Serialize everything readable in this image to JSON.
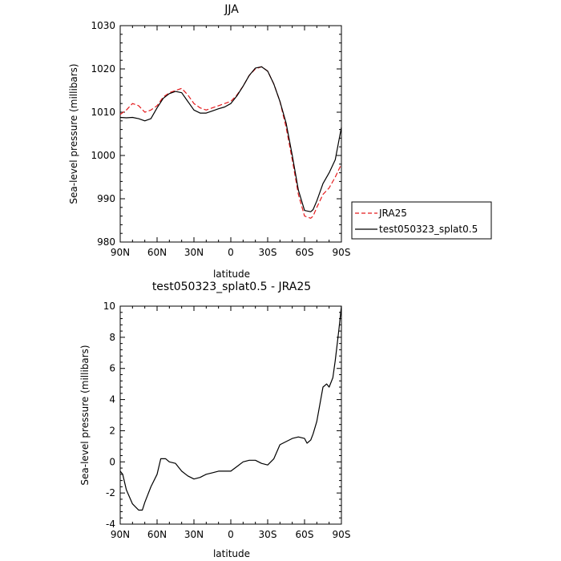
{
  "chart_data": [
    {
      "type": "line",
      "title": "JJA",
      "xlabel": "latitude",
      "ylabel": "Sea-level pressure (millibars)",
      "xlim": [
        90,
        -90
      ],
      "ylim": [
        980,
        1030
      ],
      "xticks": [
        90,
        60,
        30,
        0,
        -30,
        -60,
        -90
      ],
      "xtick_labels": [
        "90N",
        "60N",
        "30N",
        "0",
        "30S",
        "60S",
        "90S"
      ],
      "yticks": [
        980,
        990,
        1000,
        1010,
        1020,
        1030
      ],
      "ytick_labels": [
        "980",
        "990",
        "1000",
        "1010",
        "1020",
        "1030"
      ],
      "grid": false,
      "legend_position": "right",
      "series": [
        {
          "name": "JRA25",
          "color": "#e41a1c",
          "style": "dashed",
          "x": [
            90,
            85,
            80,
            75,
            70,
            65,
            60,
            55,
            50,
            45,
            40,
            35,
            30,
            25,
            20,
            15,
            10,
            5,
            0,
            -5,
            -10,
            -15,
            -20,
            -25,
            -30,
            -35,
            -40,
            -45,
            -50,
            -55,
            -60,
            -65,
            -67,
            -70,
            -75,
            -80,
            -85,
            -90
          ],
          "y": [
            1009.5,
            1010.5,
            1012,
            1011.5,
            1010,
            1010.5,
            1011.5,
            1013.5,
            1014.5,
            1015,
            1015.5,
            1014,
            1012,
            1011,
            1010.5,
            1011,
            1011.5,
            1012,
            1012.5,
            1014,
            1016,
            1018.5,
            1020,
            1020.5,
            1019.5,
            1016.5,
            1012.5,
            1006.5,
            999,
            991,
            986,
            985.5,
            986,
            988,
            991,
            992.5,
            995,
            998
          ]
        },
        {
          "name": "test050323_splat0.5",
          "color": "#000000",
          "style": "solid",
          "x": [
            90,
            85,
            80,
            75,
            70,
            65,
            60,
            55,
            50,
            45,
            40,
            35,
            30,
            25,
            20,
            15,
            10,
            5,
            0,
            -5,
            -10,
            -15,
            -20,
            -25,
            -30,
            -35,
            -40,
            -45,
            -50,
            -55,
            -60,
            -65,
            -67,
            -70,
            -75,
            -80,
            -85,
            -90
          ],
          "y": [
            1008.8,
            1008.7,
            1008.8,
            1008.5,
            1008,
            1008.5,
            1011,
            1013.2,
            1014.3,
            1014.8,
            1014.5,
            1012.5,
            1010.5,
            1009.8,
            1009.8,
            1010.3,
            1010.8,
            1011.2,
            1012,
            1013.8,
            1016,
            1018.5,
            1020.2,
            1020.5,
            1019.5,
            1016.5,
            1012.5,
            1007.5,
            1000,
            992,
            987.3,
            987,
            987.5,
            989.5,
            993.5,
            996,
            999,
            1006.5
          ]
        }
      ]
    },
    {
      "type": "line",
      "title": "test050323_splat0.5 - JRA25",
      "xlabel": "latitude",
      "ylabel": "Sea-level pressure (millibars)",
      "xlim": [
        90,
        -90
      ],
      "ylim": [
        -4,
        10
      ],
      "xticks": [
        90,
        60,
        30,
        0,
        -30,
        -60,
        -90
      ],
      "xtick_labels": [
        "90N",
        "60N",
        "30N",
        "0",
        "30S",
        "60S",
        "90S"
      ],
      "yticks": [
        -4,
        -2,
        0,
        2,
        4,
        6,
        8,
        10
      ],
      "ytick_labels": [
        "-4",
        "-2",
        "0",
        "2",
        "4",
        "6",
        "8",
        "10"
      ],
      "grid": false,
      "series": [
        {
          "color": "#000000",
          "style": "solid",
          "x": [
            90,
            88,
            85,
            80,
            75,
            72,
            70,
            65,
            60,
            57,
            53,
            50,
            45,
            40,
            35,
            30,
            25,
            20,
            15,
            10,
            5,
            0,
            -5,
            -10,
            -15,
            -20,
            -25,
            -30,
            -35,
            -40,
            -45,
            -50,
            -55,
            -60,
            -62,
            -65,
            -67,
            -70,
            -75,
            -78,
            -80,
            -83,
            -85,
            -88,
            -90
          ],
          "y": [
            -0.6,
            -0.8,
            -1.8,
            -2.7,
            -3.1,
            -3.1,
            -2.6,
            -1.6,
            -0.8,
            0.2,
            0.2,
            0,
            -0.1,
            -0.6,
            -0.9,
            -1.1,
            -1,
            -0.8,
            -0.7,
            -0.6,
            -0.6,
            -0.6,
            -0.3,
            0,
            0.1,
            0.1,
            -0.1,
            -0.2,
            0.2,
            1.1,
            1.3,
            1.5,
            1.6,
            1.5,
            1.2,
            1.4,
            1.8,
            2.6,
            4.8,
            5,
            4.8,
            5.4,
            6.5,
            8.5,
            10
          ]
        }
      ]
    }
  ]
}
